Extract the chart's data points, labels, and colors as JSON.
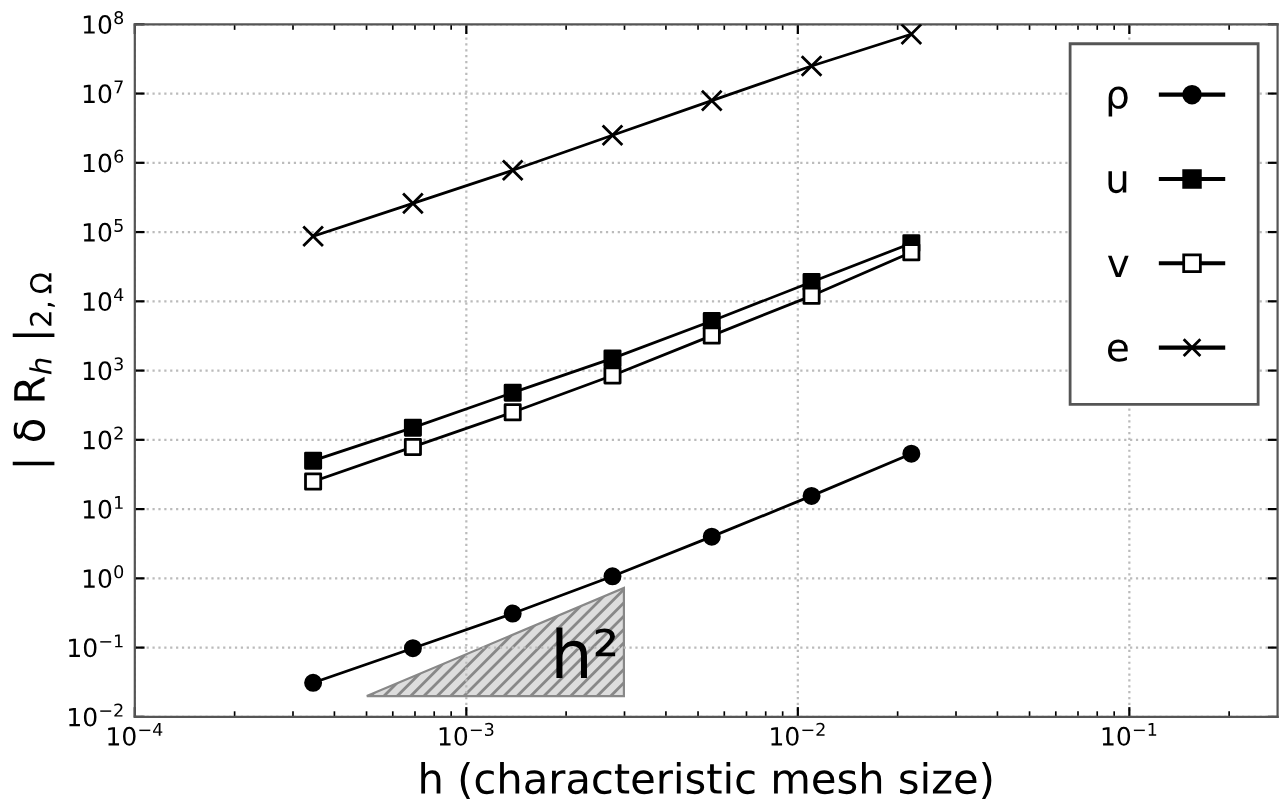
{
  "chart_data": {
    "type": "line",
    "xlabel": "h (characteristic mesh size)",
    "ylabel": "| δ R$_{h}$ |$_{2,Ω}$",
    "log": "xy",
    "grid": true,
    "legend": "top right",
    "line_style": "solid",
    "xlim": [
      0.0001,
      0.28
    ],
    "xticks": [
      {
        "value": 0.0001,
        "label": "10$^{−4}$"
      },
      {
        "value": 0.001,
        "label": "10$^{−3}$"
      },
      {
        "value": 0.01,
        "label": "10$^{−2}$"
      },
      {
        "value": 0.1,
        "label": "10$^{−1}$"
      }
    ],
    "ylim": [
      0.01,
      100000000
    ],
    "yticks": [
      {
        "value": 0.01,
        "label": "10$^{−2}$"
      },
      {
        "value": 0.1,
        "label": "10$^{−1}$"
      },
      {
        "value": 1,
        "label": "10$^{0}$"
      },
      {
        "value": 10,
        "label": "10$^{1}$"
      },
      {
        "value": 100,
        "label": "10$^{2}$"
      },
      {
        "value": 1000,
        "label": "10$^{3}$"
      },
      {
        "value": 10000,
        "label": "10$^{4}$"
      },
      {
        "value": 100000,
        "label": "10$^{5}$"
      },
      {
        "value": 1000000,
        "label": "10$^{6}$"
      },
      {
        "value": 10000000,
        "label": "10$^{7}$"
      },
      {
        "value": 100000000,
        "label": "10$^{8}$"
      }
    ],
    "x": [
      0.000345,
      0.00069,
      0.00138,
      0.00276,
      0.0055,
      0.011,
      0.022
    ],
    "series": [
      {
        "name": "ρ",
        "color": "#000000",
        "marker": "circle",
        "values": [
          0.031,
          0.098,
          0.31,
          1.07,
          4.0,
          15.5,
          63
        ]
      },
      {
        "name": "u",
        "color": "#000000",
        "marker": "square",
        "values": [
          50,
          150,
          480,
          1500,
          5200,
          19000,
          69000
        ]
      },
      {
        "name": "v",
        "color": "#000000",
        "marker": "square",
        "colors": [
          "#ffffff",
          "#ffffff",
          "#ffffff",
          "#ffffff",
          "#ffffff",
          "#ffffff",
          "#ffffff"
        ],
        "values": [
          25,
          79,
          250,
          850,
          3200,
          12000,
          51000
        ]
      },
      {
        "name": "e",
        "color": "#000000",
        "marker": "cross",
        "values": [
          87000,
          260000,
          780000,
          2500000,
          7900000,
          25000000,
          72000000
        ]
      }
    ],
    "annotations": [
      "h²"
    ]
  }
}
